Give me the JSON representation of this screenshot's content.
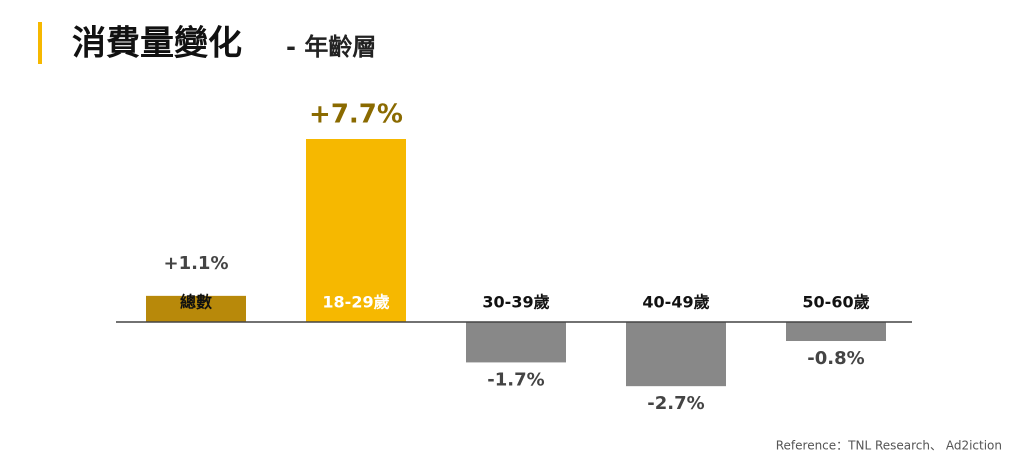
{
  "chart_data": {
    "type": "bar",
    "title": "消費量變化",
    "subtitle": "- 年齡層",
    "categories": [
      "總數",
      "18-29歲",
      "30-39歲",
      "40-49歲",
      "50-60歲"
    ],
    "values": [
      1.1,
      7.7,
      -1.7,
      -2.7,
      -0.8
    ],
    "value_labels": [
      "+1.1%",
      "+7.7%",
      "-1.7%",
      "-2.7%",
      "-0.8%"
    ],
    "colors": [
      "#b8890a",
      "#f6b800",
      "#888888",
      "#888888",
      "#888888"
    ],
    "source": "Reference：TNL Research、 Ad2iction"
  }
}
